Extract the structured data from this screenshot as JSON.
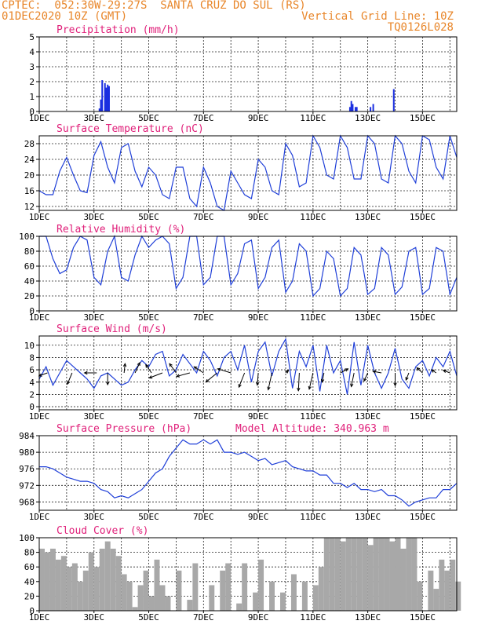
{
  "header": {
    "left1": "CPTEC:  052:30W-29:27S  SANTA CRUZ DO SUL (RS)",
    "left2": "01DEC2020 10Z (GMT)",
    "right2": "Vertical Grid Line: 10Z",
    "right3": "TQ0126L028"
  },
  "colors": {
    "header": "#e8862a",
    "title": "#e0207a",
    "line": "#1f3fd8",
    "bar": "#1a2ee0",
    "cloud": "#a8a8a8",
    "arrow": "#000000"
  },
  "chart_data": [
    {
      "type": "bar",
      "title": "Precipitation (mm/h)",
      "ylim": [
        0,
        5
      ],
      "yticks": [
        0,
        1,
        2,
        3,
        4,
        5
      ],
      "xlabels": [
        "1DEC",
        "3DEC",
        "5DEC",
        "7DEC",
        "9DEC",
        "11DEC",
        "13DEC",
        "15DEC"
      ],
      "x_unit": "day",
      "xlim": [
        0,
        15.25
      ],
      "x": [
        2.2,
        2.25,
        2.3,
        2.4,
        2.45,
        2.5,
        2.55,
        11.35,
        11.4,
        11.45,
        11.55,
        11.6,
        12.1,
        12.2,
        12.95
      ],
      "values": [
        0.2,
        0.8,
        2.1,
        1.9,
        1.6,
        1.8,
        1.7,
        0.3,
        0.7,
        0.5,
        0.3,
        0.3,
        0.3,
        0.5,
        1.5
      ]
    },
    {
      "type": "line",
      "title": "Surface Temperature (nC)",
      "ylim": [
        11,
        30
      ],
      "yticks": [
        12,
        16,
        20,
        24,
        28
      ],
      "xlabels": [
        "1DEC",
        "3DEC",
        "5DEC",
        "7DEC",
        "9DEC",
        "11DEC",
        "13DEC",
        "15DEC"
      ],
      "x_unit": "day",
      "xlim": [
        0,
        15.25
      ],
      "x": [
        0,
        0.25,
        0.5,
        0.75,
        1,
        1.25,
        1.5,
        1.75,
        2,
        2.25,
        2.5,
        2.75,
        3,
        3.25,
        3.5,
        3.75,
        4,
        4.25,
        4.5,
        4.75,
        5,
        5.25,
        5.5,
        5.75,
        6,
        6.25,
        6.5,
        6.75,
        7,
        7.25,
        7.5,
        7.75,
        8,
        8.25,
        8.5,
        8.75,
        9,
        9.25,
        9.5,
        9.75,
        10,
        10.25,
        10.5,
        10.75,
        11,
        11.25,
        11.5,
        11.75,
        12,
        12.25,
        12.5,
        12.75,
        13,
        13.25,
        13.5,
        13.75,
        14,
        14.25,
        14.5,
        14.75,
        15,
        15.25
      ],
      "y": [
        16,
        15,
        15,
        21,
        24.5,
        20,
        16,
        15.5,
        25,
        28.5,
        22,
        18,
        27,
        28,
        21,
        17,
        22,
        20,
        15,
        14,
        22,
        22,
        14,
        12,
        22,
        18,
        12,
        11,
        21,
        18,
        15,
        14,
        24,
        22,
        16,
        15,
        28,
        25,
        17,
        18,
        30,
        27,
        20,
        19,
        30,
        27,
        19,
        19,
        30,
        28,
        19,
        18,
        30,
        28,
        21,
        18,
        30,
        29,
        22,
        19,
        30,
        24.5
      ]
    },
    {
      "type": "line",
      "title": "Relative Humidity (%)",
      "ylim": [
        0,
        100
      ],
      "yticks": [
        0,
        20,
        40,
        60,
        80,
        100
      ],
      "xlabels": [
        "1DEC",
        "3DEC",
        "5DEC",
        "7DEC",
        "9DEC",
        "11DEC",
        "13DEC",
        "15DEC"
      ],
      "x_unit": "day",
      "xlim": [
        0,
        15.25
      ],
      "x": [
        0,
        0.25,
        0.5,
        0.75,
        1,
        1.25,
        1.5,
        1.75,
        2,
        2.25,
        2.5,
        2.75,
        3,
        3.25,
        3.5,
        3.75,
        4,
        4.25,
        4.5,
        4.75,
        5,
        5.25,
        5.5,
        5.75,
        6,
        6.25,
        6.5,
        6.75,
        7,
        7.25,
        7.5,
        7.75,
        8,
        8.25,
        8.5,
        8.75,
        9,
        9.25,
        9.5,
        9.75,
        10,
        10.25,
        10.5,
        10.75,
        11,
        11.25,
        11.5,
        11.75,
        12,
        12.25,
        12.5,
        12.75,
        13,
        13.25,
        13.5,
        13.75,
        14,
        14.25,
        14.5,
        14.75,
        15,
        15.25
      ],
      "y": [
        100,
        100,
        70,
        50,
        55,
        85,
        100,
        95,
        45,
        35,
        80,
        100,
        45,
        40,
        75,
        100,
        85,
        95,
        100,
        90,
        30,
        45,
        100,
        100,
        35,
        45,
        100,
        100,
        35,
        50,
        90,
        95,
        30,
        45,
        85,
        95,
        25,
        40,
        90,
        80,
        20,
        30,
        80,
        70,
        20,
        30,
        85,
        75,
        22,
        30,
        85,
        75,
        22,
        32,
        80,
        85,
        22,
        30,
        85,
        80,
        22,
        45
      ]
    },
    {
      "type": "line",
      "title": "Surface Wind (m/s)",
      "ylim": [
        -0.5,
        11.5
      ],
      "yticks": [
        0,
        2,
        4,
        6,
        8,
        10
      ],
      "xlabels": [
        "1DEC",
        "3DEC",
        "5DEC",
        "7DEC",
        "9DEC",
        "11DEC",
        "13DEC",
        "15DEC"
      ],
      "x_unit": "day",
      "xlim": [
        0,
        15.25
      ],
      "x": [
        0,
        0.25,
        0.5,
        0.75,
        1,
        1.25,
        1.5,
        1.75,
        2,
        2.25,
        2.5,
        2.75,
        3,
        3.25,
        3.5,
        3.75,
        4,
        4.25,
        4.5,
        4.75,
        5,
        5.25,
        5.5,
        5.75,
        6,
        6.25,
        6.5,
        6.75,
        7,
        7.25,
        7.5,
        7.75,
        8,
        8.25,
        8.5,
        8.75,
        9,
        9.25,
        9.5,
        9.75,
        10,
        10.25,
        10.5,
        10.75,
        11,
        11.25,
        11.5,
        11.75,
        12,
        12.25,
        12.5,
        12.75,
        13,
        13.25,
        13.5,
        13.75,
        14,
        14.25,
        14.5,
        14.75,
        15,
        15.25
      ],
      "y": [
        4.5,
        6.5,
        3.5,
        5.5,
        7.5,
        6.5,
        5.5,
        4.5,
        3,
        5,
        5.5,
        4.5,
        3.5,
        4,
        6,
        7.5,
        6.5,
        8.5,
        9,
        5,
        6,
        8.5,
        7,
        5.5,
        9,
        7.5,
        5,
        8,
        9,
        6,
        10,
        4,
        9,
        10.5,
        5,
        9,
        11,
        3,
        9,
        6.5,
        10,
        2.5,
        10,
        5.5,
        7.5,
        2,
        10.5,
        3.5,
        10,
        5.5,
        3,
        5.5,
        9.5,
        4.5,
        3,
        6.5,
        7.5,
        5,
        8,
        6.5,
        9,
        5
      ],
      "arrows": [
        {
          "x": 0.3,
          "y": 5.5,
          "dx": -0.9,
          "dy": -0.6
        },
        {
          "x": 1.2,
          "y": 5.5,
          "dx": -0.5,
          "dy": -2.2
        },
        {
          "x": 2.1,
          "y": 5.5,
          "dx": -1.3,
          "dy": 0
        },
        {
          "x": 2.5,
          "y": 5.5,
          "dx": 0,
          "dy": -2.3
        },
        {
          "x": 3.1,
          "y": 5.5,
          "dx": 0.1,
          "dy": 1.8
        },
        {
          "x": 3.5,
          "y": 5.5,
          "dx": 0.5,
          "dy": 2.0
        },
        {
          "x": 4.1,
          "y": 5.5,
          "dx": -0.6,
          "dy": 1.6
        },
        {
          "x": 4.5,
          "y": 5.5,
          "dx": -1.4,
          "dy": -1.0
        },
        {
          "x": 5.0,
          "y": 5.5,
          "dx": -0.7,
          "dy": 1.8
        },
        {
          "x": 5.5,
          "y": 5.5,
          "dx": -1.4,
          "dy": -0.7
        },
        {
          "x": 6.0,
          "y": 5.5,
          "dx": -1.0,
          "dy": 1.2
        },
        {
          "x": 6.5,
          "y": 5.5,
          "dx": -1.2,
          "dy": -1.8
        },
        {
          "x": 7.0,
          "y": 5.5,
          "dx": -1.4,
          "dy": 0.8
        },
        {
          "x": 7.5,
          "y": 5.5,
          "dx": -0.6,
          "dy": -2.8
        },
        {
          "x": 8.0,
          "y": 5.5,
          "dx": -0.1,
          "dy": -2.4
        },
        {
          "x": 8.5,
          "y": 5.5,
          "dx": -0.4,
          "dy": -3.3
        },
        {
          "x": 9.0,
          "y": 5.5,
          "dx": 0.3,
          "dy": 0.5
        },
        {
          "x": 9.5,
          "y": 5.5,
          "dx": -0.1,
          "dy": -3.5
        },
        {
          "x": 10.0,
          "y": 5.5,
          "dx": -0.4,
          "dy": -3.2
        },
        {
          "x": 10.4,
          "y": 5.5,
          "dx": -0.2,
          "dy": -1.8
        },
        {
          "x": 11.0,
          "y": 5.5,
          "dx": 0.8,
          "dy": 0.8
        },
        {
          "x": 11.5,
          "y": 5.5,
          "dx": -0.3,
          "dy": -2.7
        },
        {
          "x": 12.0,
          "y": 5.5,
          "dx": -0.4,
          "dy": -1.6
        },
        {
          "x": 12.5,
          "y": 5.5,
          "dx": -0.9,
          "dy": 0.3
        },
        {
          "x": 13.0,
          "y": 5.5,
          "dx": 0,
          "dy": -2.5
        },
        {
          "x": 13.5,
          "y": 5.5,
          "dx": -0.3,
          "dy": -1.4
        },
        {
          "x": 14.0,
          "y": 5.5,
          "dx": -0.6,
          "dy": 1.0
        },
        {
          "x": 14.5,
          "y": 5.5,
          "dx": -0.5,
          "dy": 0.6
        },
        {
          "x": 15.0,
          "y": 5.5,
          "dx": -0.7,
          "dy": 0.5
        }
      ]
    },
    {
      "type": "line",
      "title": "Surface Pressure (hPa)",
      "subtitle": "Model Altitude: 340.963 m",
      "ylim": [
        966,
        984
      ],
      "yticks": [
        968,
        972,
        976,
        980,
        984
      ],
      "xlabels": [
        "1DEC",
        "3DEC",
        "5DEC",
        "7DEC",
        "9DEC",
        "11DEC",
        "13DEC",
        "15DEC"
      ],
      "x_unit": "day",
      "xlim": [
        0,
        15.25
      ],
      "x": [
        0,
        0.25,
        0.5,
        0.75,
        1,
        1.25,
        1.5,
        1.75,
        2,
        2.25,
        2.5,
        2.75,
        3,
        3.25,
        3.5,
        3.75,
        4,
        4.25,
        4.5,
        4.75,
        5,
        5.25,
        5.5,
        5.75,
        6,
        6.25,
        6.5,
        6.75,
        7,
        7.25,
        7.5,
        7.75,
        8,
        8.25,
        8.5,
        8.75,
        9,
        9.25,
        9.5,
        9.75,
        10,
        10.25,
        10.5,
        10.75,
        11,
        11.25,
        11.5,
        11.75,
        12,
        12.25,
        12.5,
        12.75,
        13,
        13.25,
        13.5,
        13.75,
        14,
        14.25,
        14.5,
        14.75,
        15,
        15.25
      ],
      "y": [
        976.5,
        976.5,
        976,
        975,
        974,
        973.5,
        973,
        973,
        972.5,
        971,
        970.5,
        969,
        969.5,
        969,
        970,
        971,
        973,
        975,
        976,
        979,
        981,
        983,
        982,
        982,
        983,
        982,
        983,
        980,
        980,
        979.5,
        980,
        979,
        978,
        978.5,
        977,
        977.5,
        978,
        976.5,
        976,
        975.5,
        975.5,
        974.5,
        974.5,
        972.5,
        972.5,
        971.5,
        972.5,
        971,
        971,
        970.5,
        971,
        969.5,
        969.5,
        968.5,
        967,
        968,
        968.5,
        969,
        969,
        971,
        971,
        972.5
      ]
    },
    {
      "type": "bar",
      "title": "Cloud Cover (%)",
      "ylim": [
        0,
        100
      ],
      "yticks": [
        0,
        20,
        40,
        60,
        80,
        100
      ],
      "xlabels": [
        "1DEC",
        "3DEC",
        "5DEC",
        "7DEC",
        "9DEC",
        "11DEC",
        "13DEC",
        "15DEC"
      ],
      "x_unit": "day",
      "xlim": [
        0,
        15.25
      ],
      "x": [
        0,
        0.2,
        0.4,
        0.6,
        0.8,
        1.0,
        1.2,
        1.4,
        1.6,
        1.8,
        2.0,
        2.2,
        2.4,
        2.6,
        2.8,
        3.0,
        3.2,
        3.4,
        3.6,
        3.8,
        4.0,
        4.2,
        4.4,
        4.6,
        4.8,
        5.0,
        5.2,
        5.4,
        5.6,
        5.8,
        6.0,
        6.2,
        6.4,
        6.6,
        6.8,
        7.0,
        7.2,
        7.4,
        7.6,
        7.8,
        8.0,
        8.2,
        8.4,
        8.6,
        8.8,
        9.0,
        9.2,
        9.4,
        9.6,
        9.8,
        10.0,
        10.2,
        10.4,
        10.6,
        10.8,
        11.0,
        11.2,
        11.4,
        11.6,
        11.8,
        12.0,
        12.2,
        12.4,
        12.6,
        12.8,
        13.0,
        13.2,
        13.4,
        13.6,
        13.8,
        14.0,
        14.2,
        14.4,
        14.6,
        14.8,
        15.0,
        15.2
      ],
      "values": [
        85,
        80,
        85,
        70,
        75,
        60,
        65,
        40,
        55,
        80,
        60,
        85,
        95,
        85,
        75,
        50,
        40,
        5,
        35,
        55,
        20,
        70,
        35,
        20,
        0,
        55,
        0,
        15,
        65,
        0,
        0,
        35,
        0,
        55,
        65,
        0,
        10,
        65,
        0,
        25,
        70,
        0,
        40,
        0,
        25,
        0,
        50,
        0,
        40,
        0,
        35,
        60,
        100,
        100,
        100,
        95,
        100,
        100,
        100,
        100,
        90,
        100,
        100,
        100,
        95,
        100,
        85,
        100,
        100,
        40,
        0,
        55,
        30,
        70,
        55,
        70,
        40
      ]
    }
  ]
}
